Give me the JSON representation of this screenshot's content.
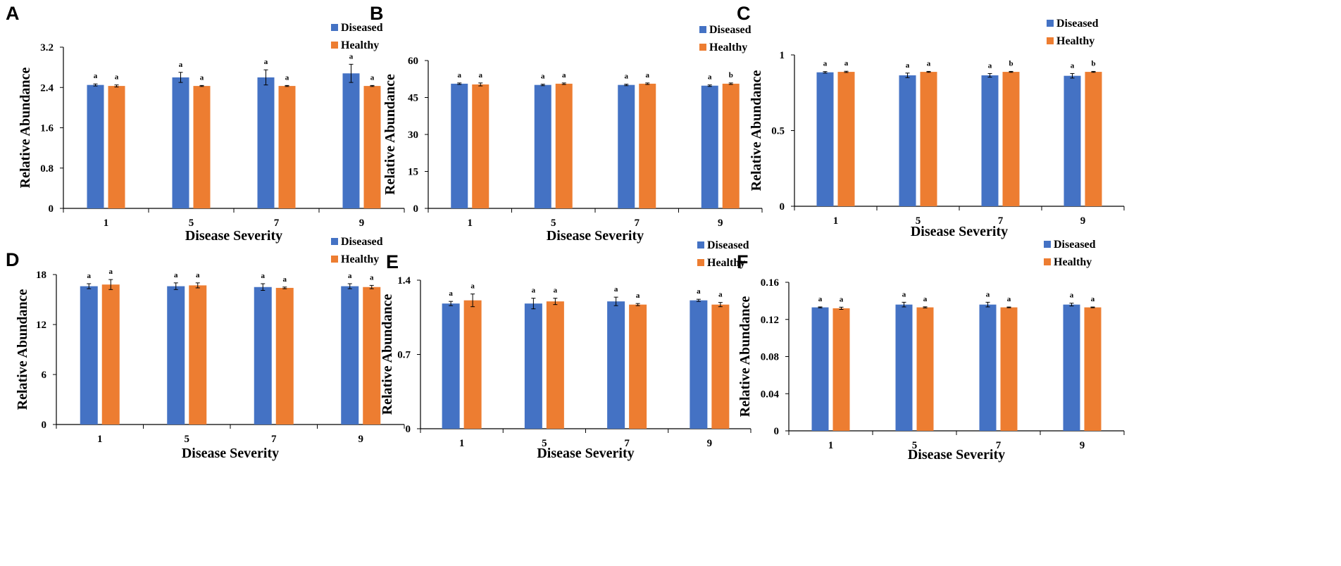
{
  "chart_data": [
    {
      "type": "bar",
      "panel": "A",
      "categories": [
        "1",
        "5",
        "7",
        "9"
      ],
      "series": [
        {
          "name": "Diseased",
          "values": [
            2.45,
            2.6,
            2.6,
            2.68
          ],
          "errors": [
            0.02,
            0.1,
            0.15,
            0.18
          ],
          "letters": [
            "a",
            "a",
            "a",
            "a"
          ]
        },
        {
          "name": "Healthy",
          "values": [
            2.43,
            2.43,
            2.43,
            2.43
          ],
          "errors": [
            0.02,
            0.01,
            0.01,
            0.01
          ],
          "letters": [
            "a",
            "a",
            "a",
            "a"
          ]
        }
      ],
      "ylim": [
        0,
        3.2
      ],
      "yticks": [
        "0",
        "0.8",
        "1.6",
        "2.4",
        "3.2"
      ],
      "xlabel": "Disease Severity",
      "ylabel": "Relative Abundance",
      "legend": "top-right"
    },
    {
      "type": "bar",
      "panel": "B",
      "categories": [
        "1",
        "5",
        "7",
        "9"
      ],
      "series": [
        {
          "name": "Diseased",
          "values": [
            50.6,
            50.1,
            50.1,
            49.8
          ],
          "errors": [
            0.3,
            0.3,
            0.3,
            0.3
          ],
          "letters": [
            "a",
            "a",
            "a",
            "a"
          ]
        },
        {
          "name": "Healthy",
          "values": [
            50.3,
            50.6,
            50.6,
            50.6
          ],
          "errors": [
            0.6,
            0.3,
            0.3,
            0.3
          ],
          "letters": [
            "a",
            "a",
            "a",
            "b"
          ]
        }
      ],
      "ylim": [
        0,
        60
      ],
      "yticks": [
        "0",
        "15",
        "30",
        "45",
        "60"
      ],
      "xlabel": "Disease Severity",
      "ylabel": "Relative Abundance",
      "legend": "top-right"
    },
    {
      "type": "bar",
      "panel": "C",
      "categories": [
        "1",
        "5",
        "7",
        "9"
      ],
      "series": [
        {
          "name": "Diseased",
          "values": [
            0.885,
            0.865,
            0.865,
            0.862
          ],
          "errors": [
            0.005,
            0.015,
            0.012,
            0.015
          ],
          "letters": [
            "a",
            "a",
            "a",
            "a"
          ]
        },
        {
          "name": "Healthy",
          "values": [
            0.888,
            0.888,
            0.888,
            0.888
          ],
          "errors": [
            0.004,
            0.003,
            0.003,
            0.003
          ],
          "letters": [
            "a",
            "a",
            "b",
            "b"
          ]
        }
      ],
      "ylim": [
        0,
        1
      ],
      "yticks": [
        "0",
        "0.5",
        "1"
      ],
      "xlabel": "Disease Severity",
      "ylabel": "Relative Abundance",
      "legend": "top-right"
    },
    {
      "type": "bar",
      "panel": "D",
      "categories": [
        "1",
        "5",
        "7",
        "9"
      ],
      "series": [
        {
          "name": "Diseased",
          "values": [
            16.6,
            16.6,
            16.5,
            16.6
          ],
          "errors": [
            0.3,
            0.4,
            0.4,
            0.3
          ],
          "letters": [
            "a",
            "a",
            "a",
            "a"
          ]
        },
        {
          "name": "Healthy",
          "values": [
            16.8,
            16.7,
            16.4,
            16.5
          ],
          "errors": [
            0.6,
            0.3,
            0.1,
            0.2
          ],
          "letters": [
            "a",
            "a",
            "a",
            "a"
          ]
        }
      ],
      "ylim": [
        0,
        18
      ],
      "yticks": [
        "0",
        "6",
        "12",
        "18"
      ],
      "xlabel": "Disease Severity",
      "ylabel": "Relative Abundance",
      "legend": "top-right"
    },
    {
      "type": "bar",
      "panel": "E",
      "categories": [
        "1",
        "5",
        "7",
        "9"
      ],
      "series": [
        {
          "name": "Diseased",
          "values": [
            1.18,
            1.18,
            1.2,
            1.21
          ],
          "errors": [
            0.02,
            0.05,
            0.04,
            0.01
          ],
          "letters": [
            "a",
            "a",
            "a",
            "a"
          ]
        },
        {
          "name": "Healthy",
          "values": [
            1.21,
            1.2,
            1.17,
            1.17
          ],
          "errors": [
            0.06,
            0.03,
            0.01,
            0.02
          ],
          "letters": [
            "a",
            "a",
            "a",
            "a"
          ]
        }
      ],
      "ylim": [
        0,
        1.4
      ],
      "yticks": [
        "0",
        "0.7",
        "1.4"
      ],
      "xlabel": "Disease Severity",
      "ylabel": "Relative Abundance",
      "legend": "top-right"
    },
    {
      "type": "bar",
      "panel": "F",
      "categories": [
        "1",
        "5",
        "7",
        "9"
      ],
      "series": [
        {
          "name": "Diseased",
          "values": [
            0.133,
            0.136,
            0.136,
            0.136
          ],
          "errors": [
            0.0005,
            0.0025,
            0.0025,
            0.0015
          ],
          "letters": [
            "a",
            "a",
            "a",
            "a"
          ]
        },
        {
          "name": "Healthy",
          "values": [
            0.132,
            0.133,
            0.133,
            0.133
          ],
          "errors": [
            0.0012,
            0.0006,
            0.0004,
            0.0004
          ],
          "letters": [
            "a",
            "a",
            "a",
            "a"
          ]
        }
      ],
      "ylim": [
        0,
        0.16
      ],
      "yticks": [
        "0",
        "0.04",
        "0.08",
        "0.12",
        "0.16"
      ],
      "xlabel": "Disease Severity",
      "ylabel": "Relative Abundance",
      "legend": "top-right"
    }
  ],
  "colors": {
    "diseased": "#4472c4",
    "healthy": "#ed7d31",
    "axis": "#000000"
  }
}
